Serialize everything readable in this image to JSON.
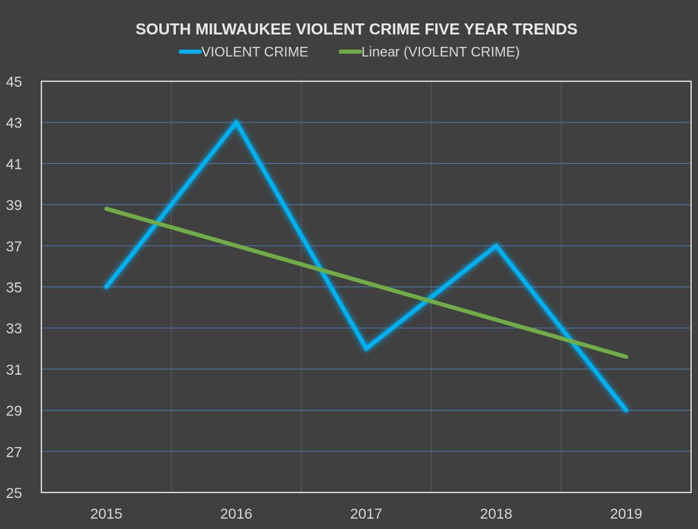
{
  "chart_data": {
    "type": "line",
    "title": "SOUTH MILWAUKEE VIOLENT CRIME FIVE YEAR TRENDS",
    "categories": [
      "2015",
      "2016",
      "2017",
      "2018",
      "2019"
    ],
    "series": [
      {
        "name": "VIOLENT CRIME",
        "values": [
          35,
          43,
          32,
          37,
          29
        ],
        "color": "#00B0F0"
      },
      {
        "name": "Linear (VIOLENT CRIME)",
        "values": [
          38.8,
          37.0,
          35.2,
          33.4,
          31.6
        ],
        "color": "#70AD47"
      }
    ],
    "ylim": [
      25,
      45
    ],
    "yticks": [
      "25",
      "27",
      "29",
      "31",
      "33",
      "35",
      "37",
      "39",
      "41",
      "43",
      "45"
    ],
    "xlabel": "",
    "ylabel": "",
    "grid": true,
    "legend_position": "top"
  },
  "colors": {
    "background": "#404040",
    "grid_horizontal": "#4A73A6",
    "grid_vertical": "#5E5E5E",
    "axis": "#FFFFFF",
    "title_text": "#E8E8E8",
    "label_text": "#D9D9D9"
  }
}
